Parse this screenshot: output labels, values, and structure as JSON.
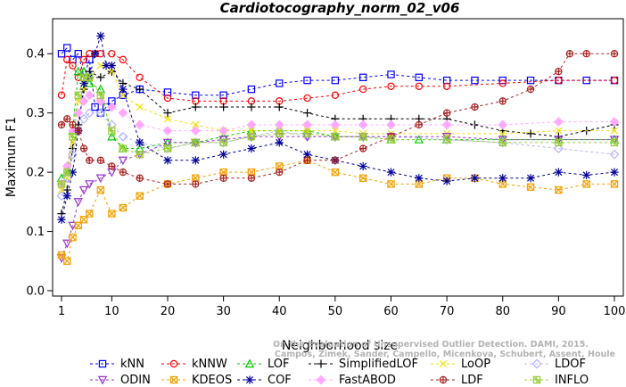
{
  "chart_data": {
    "type": "line",
    "title": "Cardiotocography_norm_02_v06",
    "xlabel": "Neighborhood size",
    "ylabel": "Maximum F1",
    "xlim": [
      1,
      100
    ],
    "ylim": [
      0,
      0.45
    ],
    "xticks": [
      1,
      10,
      20,
      30,
      40,
      50,
      60,
      70,
      80,
      90,
      100
    ],
    "yticks": [
      0.0,
      0.1,
      0.2,
      0.3,
      0.4
    ],
    "ytick_labels": [
      "0.0",
      "0.1",
      "0.2",
      "0.3",
      "0.4"
    ],
    "grid": false,
    "legend_position": "bottom",
    "credit_lines": [
      "Campos, Zimek, Sander, Campello, Micenkova, Schubert, Assent, Houle",
      "On the Evaluation of Unsupervised Outlier Detection. DAMI, 2015."
    ],
    "series": [
      {
        "name": "kNN",
        "color": "#0000ff",
        "marker": "square",
        "points": [
          [
            1,
            0.4
          ],
          [
            2,
            0.41
          ],
          [
            3,
            0.39
          ],
          [
            4,
            0.4
          ],
          [
            5,
            0.36
          ],
          [
            6,
            0.39
          ],
          [
            7,
            0.31
          ],
          [
            8,
            0.3
          ],
          [
            9,
            0.31
          ],
          [
            10,
            0.32
          ],
          [
            12,
            0.33
          ],
          [
            15,
            0.34
          ],
          [
            20,
            0.335
          ],
          [
            25,
            0.33
          ],
          [
            30,
            0.33
          ],
          [
            35,
            0.34
          ],
          [
            40,
            0.35
          ],
          [
            45,
            0.355
          ],
          [
            50,
            0.355
          ],
          [
            55,
            0.36
          ],
          [
            60,
            0.365
          ],
          [
            65,
            0.36
          ],
          [
            70,
            0.355
          ],
          [
            75,
            0.355
          ],
          [
            80,
            0.355
          ],
          [
            85,
            0.355
          ],
          [
            90,
            0.355
          ],
          [
            95,
            0.355
          ],
          [
            100,
            0.355
          ]
        ]
      },
      {
        "name": "kNNW",
        "color": "#ff0000",
        "marker": "circle",
        "points": [
          [
            1,
            0.33
          ],
          [
            2,
            0.39
          ],
          [
            3,
            0.38
          ],
          [
            4,
            0.36
          ],
          [
            5,
            0.39
          ],
          [
            6,
            0.4
          ],
          [
            7,
            0.4
          ],
          [
            8,
            0.4
          ],
          [
            10,
            0.4
          ],
          [
            12,
            0.39
          ],
          [
            15,
            0.36
          ],
          [
            20,
            0.325
          ],
          [
            25,
            0.32
          ],
          [
            30,
            0.32
          ],
          [
            35,
            0.32
          ],
          [
            40,
            0.32
          ],
          [
            45,
            0.325
          ],
          [
            50,
            0.33
          ],
          [
            55,
            0.34
          ],
          [
            60,
            0.345
          ],
          [
            65,
            0.345
          ],
          [
            70,
            0.345
          ],
          [
            80,
            0.35
          ],
          [
            90,
            0.355
          ],
          [
            100,
            0.355
          ]
        ]
      },
      {
        "name": "LOF",
        "color": "#00cc00",
        "marker": "triangle-up",
        "points": [
          [
            1,
            0.19
          ],
          [
            2,
            0.2
          ],
          [
            3,
            0.27
          ],
          [
            4,
            0.37
          ],
          [
            5,
            0.37
          ],
          [
            6,
            0.35
          ],
          [
            8,
            0.34
          ],
          [
            10,
            0.26
          ],
          [
            12,
            0.24
          ],
          [
            15,
            0.24
          ],
          [
            20,
            0.25
          ],
          [
            25,
            0.25
          ],
          [
            30,
            0.26
          ],
          [
            35,
            0.27
          ],
          [
            40,
            0.27
          ],
          [
            45,
            0.27
          ],
          [
            50,
            0.26
          ],
          [
            55,
            0.26
          ],
          [
            60,
            0.255
          ],
          [
            65,
            0.255
          ],
          [
            70,
            0.255
          ],
          [
            80,
            0.255
          ],
          [
            90,
            0.255
          ],
          [
            100,
            0.255
          ]
        ]
      },
      {
        "name": "SimplifiedLOF",
        "color": "#000000",
        "marker": "plus",
        "points": [
          [
            1,
            0.13
          ],
          [
            2,
            0.17
          ],
          [
            3,
            0.24
          ],
          [
            4,
            0.28
          ],
          [
            5,
            0.34
          ],
          [
            6,
            0.37
          ],
          [
            8,
            0.36
          ],
          [
            10,
            0.37
          ],
          [
            12,
            0.35
          ],
          [
            15,
            0.34
          ],
          [
            20,
            0.3
          ],
          [
            25,
            0.31
          ],
          [
            30,
            0.31
          ],
          [
            35,
            0.31
          ],
          [
            40,
            0.31
          ],
          [
            45,
            0.3
          ],
          [
            50,
            0.29
          ],
          [
            55,
            0.29
          ],
          [
            60,
            0.29
          ],
          [
            65,
            0.29
          ],
          [
            70,
            0.29
          ],
          [
            75,
            0.28
          ],
          [
            80,
            0.27
          ],
          [
            85,
            0.265
          ],
          [
            90,
            0.26
          ],
          [
            95,
            0.27
          ],
          [
            100,
            0.28
          ]
        ]
      },
      {
        "name": "LoOP",
        "color": "#f0e000",
        "marker": "x",
        "points": [
          [
            1,
            0.17
          ],
          [
            2,
            0.19
          ],
          [
            3,
            0.25
          ],
          [
            4,
            0.32
          ],
          [
            5,
            0.34
          ],
          [
            6,
            0.36
          ],
          [
            8,
            0.38
          ],
          [
            10,
            0.37
          ],
          [
            12,
            0.33
          ],
          [
            15,
            0.31
          ],
          [
            20,
            0.29
          ],
          [
            25,
            0.28
          ],
          [
            30,
            0.27
          ],
          [
            35,
            0.27
          ],
          [
            40,
            0.27
          ],
          [
            45,
            0.27
          ],
          [
            50,
            0.27
          ],
          [
            55,
            0.265
          ],
          [
            60,
            0.265
          ],
          [
            70,
            0.265
          ],
          [
            80,
            0.265
          ],
          [
            90,
            0.27
          ],
          [
            100,
            0.27
          ]
        ]
      },
      {
        "name": "LDOF",
        "color": "#b3b3ff",
        "marker": "diamond",
        "points": [
          [
            1,
            0.16
          ],
          [
            2,
            0.19
          ],
          [
            3,
            0.23
          ],
          [
            4,
            0.27
          ],
          [
            5,
            0.29
          ],
          [
            6,
            0.3
          ],
          [
            8,
            0.3
          ],
          [
            10,
            0.28
          ],
          [
            12,
            0.26
          ],
          [
            15,
            0.25
          ],
          [
            20,
            0.24
          ],
          [
            25,
            0.25
          ],
          [
            30,
            0.25
          ],
          [
            35,
            0.26
          ],
          [
            40,
            0.27
          ],
          [
            45,
            0.26
          ],
          [
            50,
            0.26
          ],
          [
            55,
            0.26
          ],
          [
            60,
            0.26
          ],
          [
            70,
            0.255
          ],
          [
            80,
            0.25
          ],
          [
            90,
            0.24
          ],
          [
            100,
            0.23
          ]
        ]
      },
      {
        "name": "ODIN",
        "color": "#9933cc",
        "marker": "triangle-down",
        "points": [
          [
            1,
            0.055
          ],
          [
            2,
            0.08
          ],
          [
            3,
            0.11
          ],
          [
            4,
            0.15
          ],
          [
            5,
            0.17
          ],
          [
            6,
            0.18
          ],
          [
            8,
            0.19
          ],
          [
            10,
            0.2
          ],
          [
            12,
            0.22
          ],
          [
            15,
            0.23
          ],
          [
            20,
            0.25
          ],
          [
            25,
            0.25
          ],
          [
            30,
            0.255
          ],
          [
            35,
            0.26
          ],
          [
            40,
            0.26
          ],
          [
            45,
            0.26
          ],
          [
            50,
            0.26
          ],
          [
            55,
            0.26
          ],
          [
            60,
            0.26
          ],
          [
            70,
            0.26
          ],
          [
            80,
            0.255
          ],
          [
            90,
            0.255
          ],
          [
            100,
            0.255
          ]
        ]
      },
      {
        "name": "KDEOS",
        "color": "#f5a000",
        "marker": "square-x",
        "points": [
          [
            1,
            0.06
          ],
          [
            2,
            0.05
          ],
          [
            3,
            0.09
          ],
          [
            4,
            0.11
          ],
          [
            5,
            0.12
          ],
          [
            6,
            0.13
          ],
          [
            8,
            0.17
          ],
          [
            10,
            0.13
          ],
          [
            12,
            0.14
          ],
          [
            15,
            0.16
          ],
          [
            20,
            0.18
          ],
          [
            25,
            0.19
          ],
          [
            30,
            0.2
          ],
          [
            35,
            0.2
          ],
          [
            40,
            0.21
          ],
          [
            45,
            0.22
          ],
          [
            50,
            0.2
          ],
          [
            55,
            0.19
          ],
          [
            60,
            0.18
          ],
          [
            65,
            0.18
          ],
          [
            70,
            0.19
          ],
          [
            75,
            0.19
          ],
          [
            80,
            0.18
          ],
          [
            85,
            0.175
          ],
          [
            90,
            0.17
          ],
          [
            95,
            0.18
          ],
          [
            100,
            0.18
          ]
        ]
      },
      {
        "name": "COF",
        "color": "#000099",
        "marker": "asterisk",
        "points": [
          [
            1,
            0.12
          ],
          [
            2,
            0.16
          ],
          [
            3,
            0.2
          ],
          [
            4,
            0.27
          ],
          [
            5,
            0.35
          ],
          [
            6,
            0.36
          ],
          [
            7,
            0.4
          ],
          [
            8,
            0.43
          ],
          [
            9,
            0.38
          ],
          [
            10,
            0.38
          ],
          [
            12,
            0.34
          ],
          [
            15,
            0.25
          ],
          [
            20,
            0.22
          ],
          [
            25,
            0.22
          ],
          [
            30,
            0.23
          ],
          [
            35,
            0.24
          ],
          [
            40,
            0.25
          ],
          [
            45,
            0.23
          ],
          [
            50,
            0.22
          ],
          [
            55,
            0.21
          ],
          [
            60,
            0.2
          ],
          [
            65,
            0.19
          ],
          [
            70,
            0.185
          ],
          [
            75,
            0.19
          ],
          [
            80,
            0.19
          ],
          [
            85,
            0.19
          ],
          [
            90,
            0.2
          ],
          [
            95,
            0.195
          ],
          [
            100,
            0.2
          ]
        ]
      },
      {
        "name": "FastABOD",
        "color": "#ffaaff",
        "marker": "diamond-filled",
        "points": [
          [
            1,
            0.18
          ],
          [
            2,
            0.21
          ],
          [
            3,
            0.27
          ],
          [
            4,
            0.3
          ],
          [
            5,
            0.32
          ],
          [
            6,
            0.33
          ],
          [
            8,
            0.32
          ],
          [
            10,
            0.31
          ],
          [
            12,
            0.3
          ],
          [
            15,
            0.28
          ],
          [
            20,
            0.27
          ],
          [
            25,
            0.27
          ],
          [
            30,
            0.27
          ],
          [
            35,
            0.28
          ],
          [
            40,
            0.28
          ],
          [
            45,
            0.28
          ],
          [
            50,
            0.28
          ],
          [
            55,
            0.28
          ],
          [
            60,
            0.28
          ],
          [
            70,
            0.28
          ],
          [
            80,
            0.28
          ],
          [
            90,
            0.285
          ],
          [
            100,
            0.285
          ]
        ]
      },
      {
        "name": "LDF",
        "color": "#aa2222",
        "marker": "circle-plus",
        "points": [
          [
            1,
            0.28
          ],
          [
            2,
            0.29
          ],
          [
            3,
            0.28
          ],
          [
            4,
            0.27
          ],
          [
            5,
            0.24
          ],
          [
            6,
            0.22
          ],
          [
            8,
            0.22
          ],
          [
            10,
            0.21
          ],
          [
            12,
            0.2
          ],
          [
            15,
            0.19
          ],
          [
            20,
            0.18
          ],
          [
            25,
            0.18
          ],
          [
            30,
            0.19
          ],
          [
            35,
            0.19
          ],
          [
            40,
            0.2
          ],
          [
            45,
            0.22
          ],
          [
            50,
            0.22
          ],
          [
            55,
            0.24
          ],
          [
            60,
            0.26
          ],
          [
            65,
            0.28
          ],
          [
            70,
            0.3
          ],
          [
            75,
            0.31
          ],
          [
            80,
            0.32
          ],
          [
            85,
            0.34
          ],
          [
            90,
            0.37
          ],
          [
            92,
            0.4
          ],
          [
            95,
            0.4
          ],
          [
            100,
            0.4
          ]
        ]
      },
      {
        "name": "INFLO",
        "color": "#99cc33",
        "marker": "square-star",
        "points": [
          [
            1,
            0.18
          ],
          [
            2,
            0.2
          ],
          [
            3,
            0.26
          ],
          [
            4,
            0.33
          ],
          [
            5,
            0.36
          ],
          [
            6,
            0.36
          ],
          [
            8,
            0.33
          ],
          [
            10,
            0.27
          ],
          [
            12,
            0.24
          ],
          [
            15,
            0.23
          ],
          [
            20,
            0.24
          ],
          [
            25,
            0.25
          ],
          [
            30,
            0.25
          ],
          [
            35,
            0.26
          ],
          [
            40,
            0.265
          ],
          [
            45,
            0.265
          ],
          [
            50,
            0.26
          ],
          [
            55,
            0.26
          ],
          [
            60,
            0.255
          ],
          [
            70,
            0.255
          ],
          [
            80,
            0.25
          ],
          [
            90,
            0.25
          ],
          [
            100,
            0.25
          ]
        ]
      }
    ]
  }
}
